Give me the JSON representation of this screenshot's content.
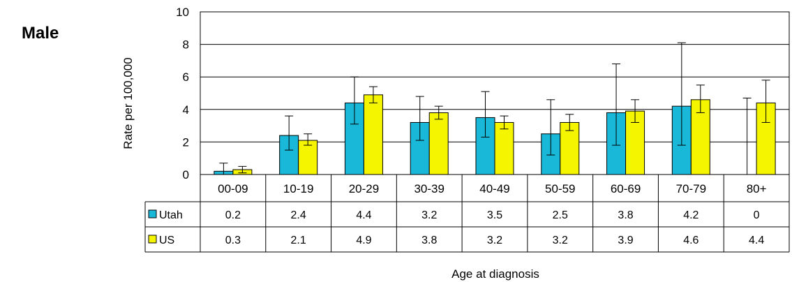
{
  "panel_label": "Male",
  "chart_data": {
    "type": "bar",
    "ylabel": "Rate per 100,000",
    "xlabel": "Age at diagnosis",
    "ylim": [
      0,
      10
    ],
    "yticks": [
      "0",
      "2",
      "4",
      "6",
      "8",
      "10"
    ],
    "categories": [
      "00-09",
      "10-19",
      "20-29",
      "30-39",
      "40-49",
      "50-59",
      "60-69",
      "70-79",
      "80+"
    ],
    "grid": "horizontal",
    "series": [
      {
        "name": "Utah",
        "color": "#1ab8d8",
        "values": [
          0.2,
          2.4,
          4.4,
          3.2,
          3.5,
          2.5,
          3.8,
          4.2,
          0
        ],
        "labels": [
          "0.2",
          "2.4",
          "4.4",
          "3.2",
          "3.5",
          "2.5",
          "3.8",
          "4.2",
          "0"
        ],
        "ci_low": [
          0.0,
          1.5,
          3.1,
          2.1,
          2.3,
          1.2,
          1.8,
          1.8,
          0.0
        ],
        "ci_high": [
          0.7,
          3.6,
          6.0,
          4.8,
          5.1,
          4.6,
          6.8,
          8.1,
          4.7
        ]
      },
      {
        "name": "US",
        "color": "#f5f500",
        "values": [
          0.3,
          2.1,
          4.9,
          3.8,
          3.2,
          3.2,
          3.9,
          4.6,
          4.4
        ],
        "labels": [
          "0.3",
          "2.1",
          "4.9",
          "3.8",
          "3.2",
          "3.2",
          "3.9",
          "4.6",
          "4.4"
        ],
        "ci_low": [
          0.1,
          1.8,
          4.4,
          3.4,
          2.8,
          2.7,
          3.2,
          3.8,
          3.2
        ],
        "ci_high": [
          0.5,
          2.5,
          5.4,
          4.2,
          3.6,
          3.7,
          4.6,
          5.5,
          5.8
        ]
      }
    ]
  }
}
